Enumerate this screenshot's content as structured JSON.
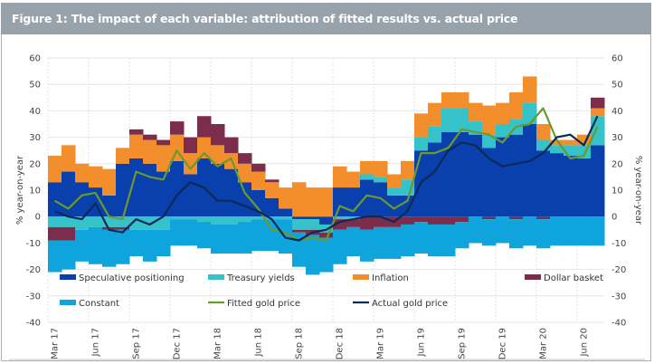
{
  "title": "Figure 1: The impact of each variable: attribution of fitted results vs. actual price",
  "chart_data": {
    "type": "bar",
    "subtype": "stacked bar with line overlay",
    "title": "Figure 1: The impact of each variable: attribution of fitted results vs. actual price",
    "xlabel": "",
    "ylabel": "% year-on-year",
    "ylabel_right": "% year-on-year",
    "ylim": [
      -40,
      60
    ],
    "yticks": [
      -40,
      -30,
      -20,
      -10,
      0,
      10,
      20,
      30,
      40,
      50,
      60
    ],
    "grid": true,
    "legend_position": "bottom-inside",
    "x_tick_labels": [
      "Mar 17",
      "Jun 17",
      "Sep 17",
      "Dec 17",
      "Mar 18",
      "Jun 18",
      "Sep 18",
      "Dec 18",
      "Mar 19",
      "Jun 19",
      "Sep 19",
      "Dec 19",
      "Mar 20",
      "Jun 20"
    ],
    "categories": [
      "Mar 17",
      "Apr 17",
      "May 17",
      "Jun 17",
      "Jul 17",
      "Aug 17",
      "Sep 17",
      "Oct 17",
      "Nov 17",
      "Dec 17",
      "Jan 18",
      "Feb 18",
      "Mar 18",
      "Apr 18",
      "May 18",
      "Jun 18",
      "Jul 18",
      "Aug 18",
      "Sep 18",
      "Oct 18",
      "Nov 18",
      "Dec 18",
      "Jan 19",
      "Feb 19",
      "Mar 19",
      "Apr 19",
      "May 19",
      "Jun 19",
      "Jul 19",
      "Aug 19",
      "Sep 19",
      "Oct 19",
      "Nov 19",
      "Dec 19",
      "Jan 20",
      "Feb 20",
      "Mar 20",
      "Apr 20",
      "May 20",
      "Jun 20",
      "Jul 20"
    ],
    "series": [
      {
        "name": "Speculative positioning",
        "kind": "bar",
        "color": "#0a3fae",
        "values": [
          13,
          17,
          13,
          11,
          8,
          20,
          22,
          20,
          17,
          21,
          16,
          22,
          20,
          18,
          13,
          10,
          7,
          3,
          -1,
          -1,
          -3,
          11,
          11,
          14,
          13,
          8,
          8,
          25,
          28,
          32,
          32,
          31,
          26,
          30,
          31,
          35,
          25,
          24,
          23,
          22,
          27
        ]
      },
      {
        "name": "Treasury yields",
        "kind": "bar",
        "color": "#36c2c9",
        "values": [
          -4,
          -4,
          -5,
          -4,
          -4,
          -4,
          -5,
          -5,
          -5,
          -1,
          -1,
          -2,
          -3,
          -3,
          -2,
          -1,
          -1,
          -1,
          -4,
          -4,
          -3,
          -1,
          -1,
          2,
          2,
          3,
          6,
          5,
          6,
          9,
          9,
          5,
          5,
          5,
          6,
          8,
          4,
          3,
          4,
          5,
          11
        ]
      },
      {
        "name": "Inflation",
        "kind": "bar",
        "color": "#f28e2b",
        "values": [
          10,
          10,
          7,
          8,
          10,
          6,
          9,
          9,
          10,
          10,
          8,
          8,
          7,
          6,
          7,
          7,
          6,
          8,
          13,
          11,
          11,
          8,
          6,
          5,
          6,
          5,
          7,
          9,
          9,
          6,
          6,
          7,
          11,
          8,
          10,
          10,
          6,
          2,
          2,
          4,
          3
        ]
      },
      {
        "name": "Dollar basket",
        "kind": "bar",
        "color": "#7b2d4b",
        "values": [
          -5,
          -5,
          0,
          0,
          -1,
          -1,
          2,
          2,
          2,
          5,
          6,
          8,
          8,
          6,
          4,
          3,
          1,
          0,
          -1,
          -2,
          -2,
          -4,
          -3,
          -5,
          -4,
          -4,
          -3,
          -2,
          -3,
          -3,
          -2,
          0,
          -1,
          0,
          -1,
          0,
          -1,
          0,
          0,
          0,
          4
        ]
      },
      {
        "name": "Constant",
        "kind": "bar",
        "color": "#0fa5dc",
        "values": [
          -12,
          -11,
          -12,
          -14,
          -14,
          -13,
          -10,
          -12,
          -10,
          -10,
          -10,
          -10,
          -11,
          -11,
          -12,
          -12,
          -12,
          -13,
          -13,
          -15,
          -13,
          -13,
          -11,
          -12,
          -12,
          -12,
          -12,
          -12,
          -12,
          -12,
          -10,
          -10,
          -10,
          -10,
          -11,
          -11,
          -11,
          -11,
          -11,
          -11,
          -11
        ]
      },
      {
        "name": "Fitted gold price",
        "kind": "line",
        "color": "#6a9a2b",
        "values": [
          6,
          3,
          8,
          9,
          0,
          -1,
          17,
          15,
          14,
          25,
          18,
          24,
          19,
          22,
          9,
          3,
          -5,
          -6,
          -9,
          -8,
          -9,
          4,
          2,
          8,
          7,
          3,
          6,
          24,
          24,
          26,
          33,
          32,
          31,
          28,
          34,
          35,
          41,
          29,
          22,
          23,
          34
        ]
      },
      {
        "name": "Actual gold price",
        "kind": "line",
        "color": "#0b2a55",
        "values": [
          2,
          0,
          -1,
          5,
          -5,
          -6,
          -1,
          -3,
          0,
          8,
          13,
          11,
          6,
          6,
          4,
          2,
          -1,
          -8,
          -9,
          -6,
          -5,
          -2,
          -1,
          0,
          0,
          -2,
          2,
          13,
          17,
          25,
          28,
          27,
          22,
          19,
          20,
          21,
          24,
          30,
          31,
          27,
          38
        ]
      }
    ]
  },
  "legend": {
    "items": [
      {
        "label": "Speculative positioning",
        "type": "bar",
        "color": "#0a3fae"
      },
      {
        "label": "Treasury yields",
        "type": "bar",
        "color": "#36c2c9"
      },
      {
        "label": "Inflation",
        "type": "bar",
        "color": "#f28e2b"
      },
      {
        "label": "Dollar basket",
        "type": "bar",
        "color": "#7b2d4b"
      },
      {
        "label": "Constant",
        "type": "bar",
        "color": "#0fa5dc"
      },
      {
        "label": "Fitted gold price",
        "type": "line",
        "color": "#6a9a2b"
      },
      {
        "label": "Actual gold price",
        "type": "line",
        "color": "#0b2a55"
      }
    ]
  }
}
